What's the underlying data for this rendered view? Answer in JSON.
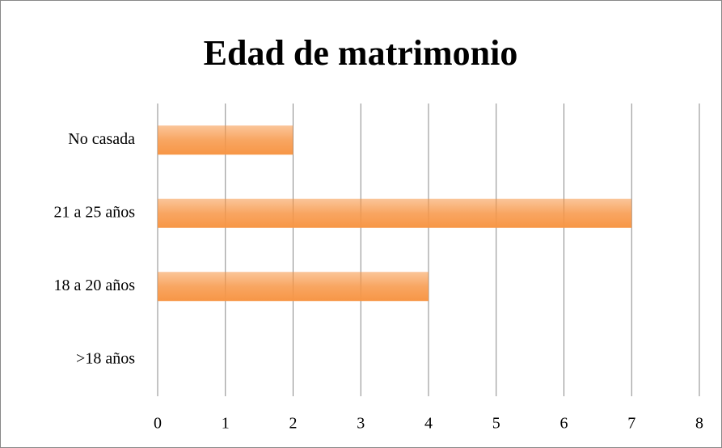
{
  "chart_data": {
    "type": "bar",
    "orientation": "horizontal",
    "title": "Edad de matrimonio",
    "categories": [
      ">18 años",
      "18 a 20 años",
      "21 a 25 años",
      "No casada"
    ],
    "values": [
      0,
      4,
      7,
      2
    ],
    "color": "#f79646",
    "xlim": [
      0,
      8
    ],
    "xticks": [
      0,
      1,
      2,
      3,
      4,
      5,
      6,
      7,
      8
    ],
    "grid": true
  }
}
